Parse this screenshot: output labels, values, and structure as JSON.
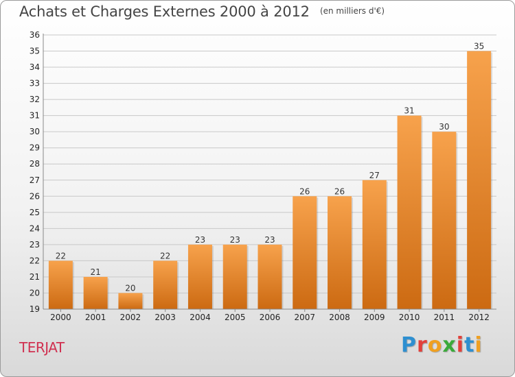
{
  "header": {
    "title": "Achats et Charges Externes 2000 à 2012",
    "subtitle": "(en milliers d'€)"
  },
  "commune": "TERJAT",
  "logo": {
    "text": "Proxiti",
    "letter_colors": [
      "#2e8fd0",
      "#e2403a",
      "#f0a020",
      "#3aaa3a",
      "#e2403a",
      "#2e8fd0",
      "#f0a020"
    ]
  },
  "colors": {
    "bar_top": "#f7a24c",
    "bar_bottom": "#cc6a12",
    "grid": "#c8c8c8"
  },
  "chart_data": {
    "type": "bar",
    "categories": [
      "2000",
      "2001",
      "2002",
      "2003",
      "2004",
      "2005",
      "2006",
      "2007",
      "2008",
      "2009",
      "2010",
      "2011",
      "2012"
    ],
    "values": [
      22,
      21,
      20,
      22,
      23,
      23,
      23,
      26,
      26,
      27,
      31,
      30,
      35
    ],
    "title": "Achats et Charges Externes 2000 à 2012",
    "subtitle": "(en milliers d'€)",
    "xlabel": "",
    "ylabel": "",
    "ylim": [
      19,
      36
    ],
    "yticks": [
      19,
      20,
      21,
      22,
      23,
      24,
      25,
      26,
      27,
      28,
      29,
      30,
      31,
      32,
      33,
      34,
      35,
      36
    ],
    "grid": true,
    "legend": "none"
  }
}
